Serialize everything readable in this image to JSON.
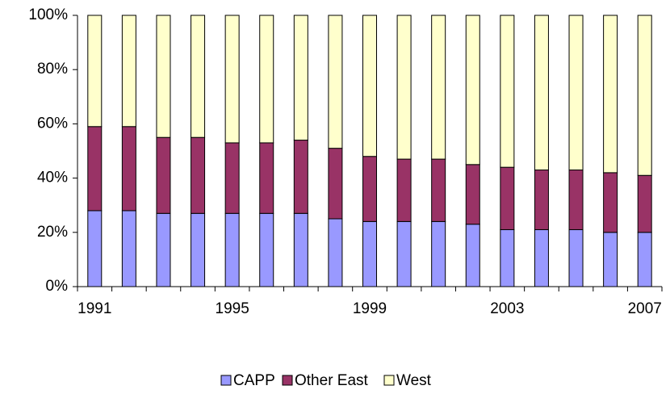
{
  "chart_data": {
    "type": "stacked_bar_100",
    "categories": [
      "1991",
      null,
      null,
      null,
      "1995",
      null,
      null,
      null,
      "1999",
      null,
      null,
      null,
      "2003",
      null,
      null,
      null,
      "2007"
    ],
    "series": [
      {
        "name": "CAPP",
        "color": "#9999ff",
        "values": [
          28,
          28,
          27,
          27,
          27,
          27,
          27,
          25,
          24,
          24,
          24,
          23,
          21,
          21,
          21,
          20,
          20
        ]
      },
      {
        "name": "Other East",
        "color": "#993366",
        "values": [
          31,
          31,
          28,
          28,
          26,
          26,
          27,
          26,
          24,
          23,
          23,
          22,
          23,
          22,
          22,
          22,
          21
        ]
      },
      {
        "name": "West",
        "color": "#ffffcc",
        "values": [
          41,
          41,
          45,
          45,
          47,
          47,
          46,
          49,
          52,
          53,
          53,
          55,
          56,
          57,
          57,
          58,
          59
        ]
      }
    ],
    "ylim": [
      0,
      100
    ],
    "yticks": [
      {
        "value": 0,
        "label": "0%"
      },
      {
        "value": 20,
        "label": "20%"
      },
      {
        "value": 40,
        "label": "40%"
      },
      {
        "value": 60,
        "label": "60%"
      },
      {
        "value": 80,
        "label": "80%"
      },
      {
        "value": 100,
        "label": "100%"
      }
    ],
    "legend": "bottom"
  }
}
